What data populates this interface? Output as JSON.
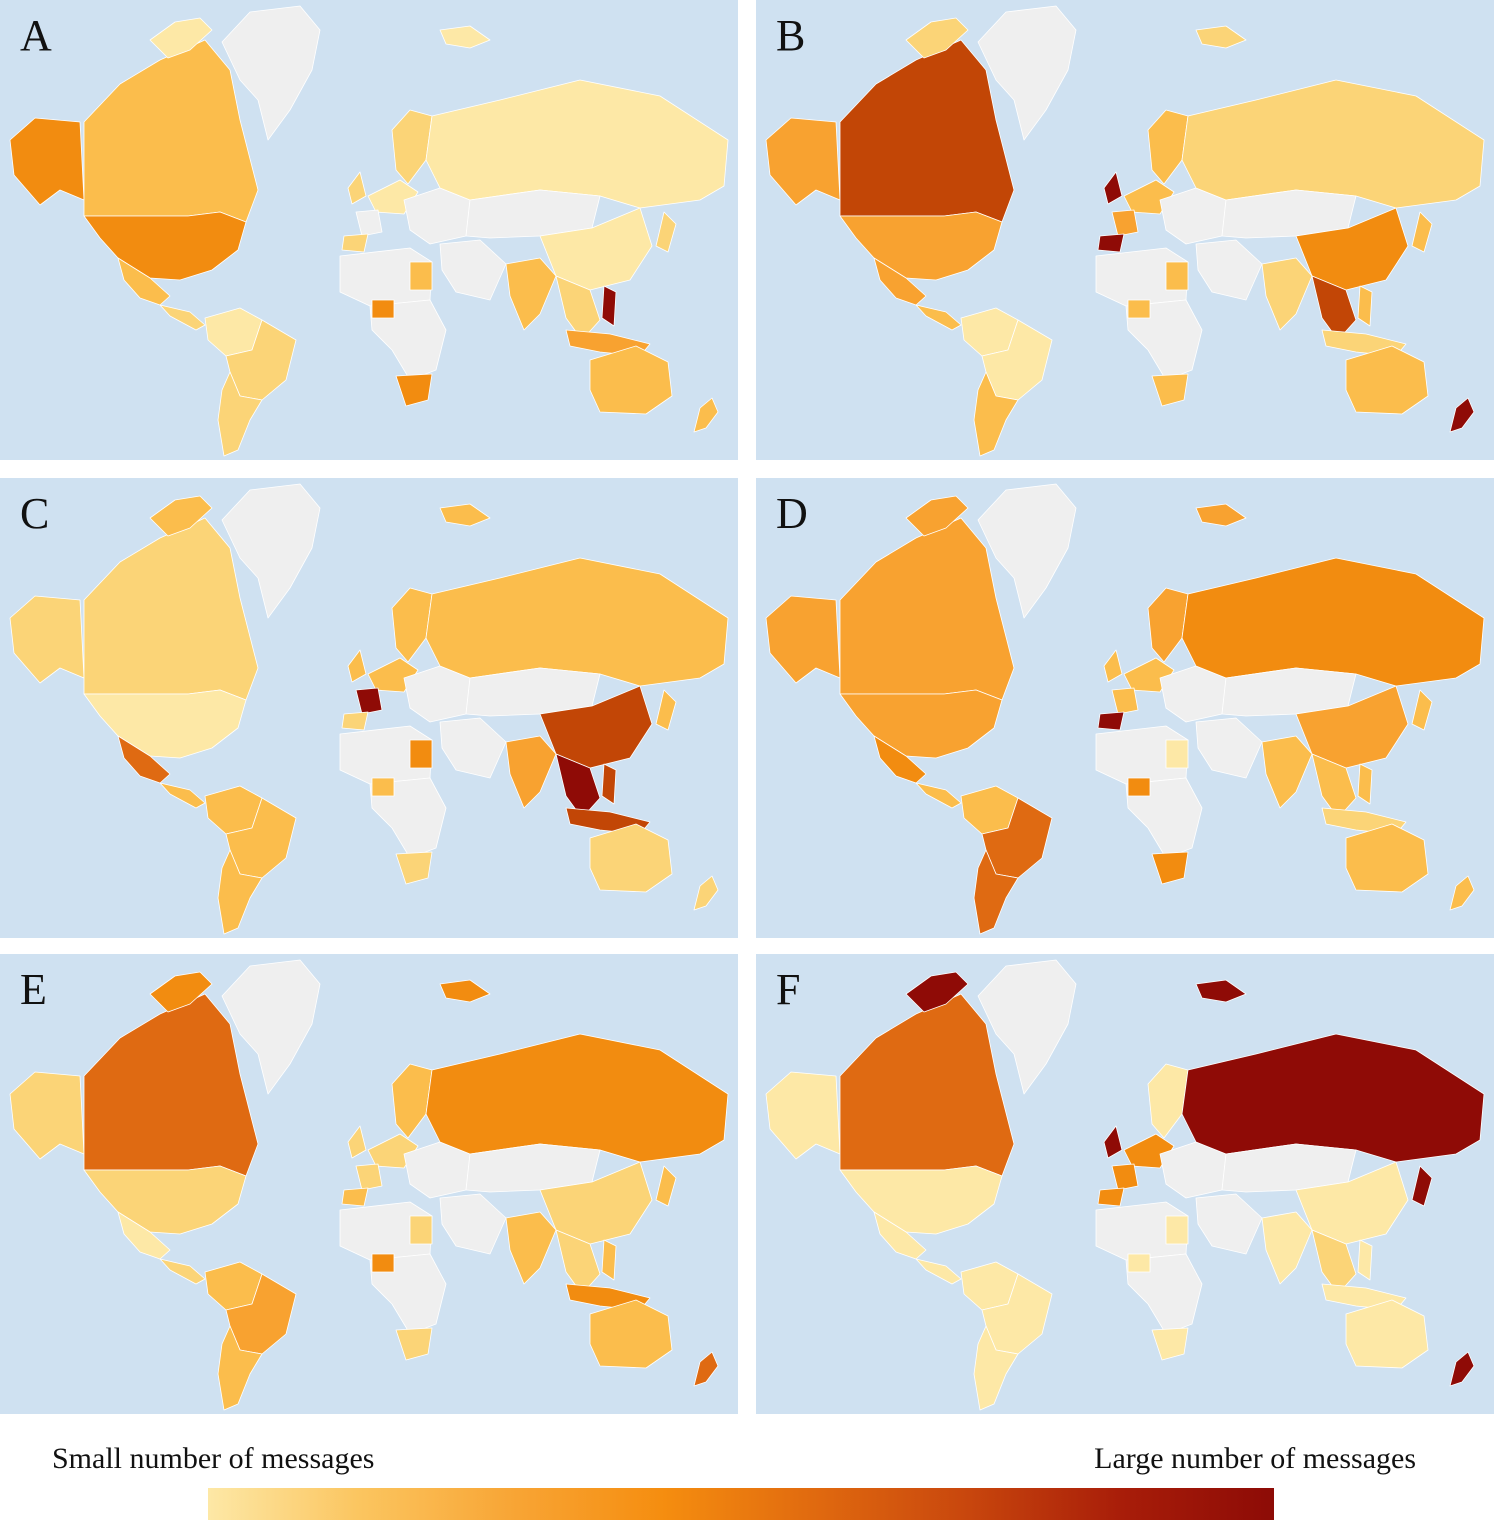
{
  "legend": {
    "min_label": "Small number of messages",
    "max_label": "Large number of messages",
    "gradient": [
      "#fde8a6",
      "#fbc55f",
      "#f8a535",
      "#f58d0f",
      "#e0690f",
      "#c8460d",
      "#a81d09",
      "#8d0b06"
    ]
  },
  "scale_colors": {
    "no_data": "#efefef",
    "ocean": "#cfe1f1",
    "level_1": "#fde8a6",
    "level_2": "#fbd477",
    "level_3": "#fbbd4c",
    "level_4": "#f8a230",
    "level_5": "#f28c10",
    "level_6": "#df6a12",
    "level_7": "#c24606",
    "level_8": "#8f0b06"
  },
  "panels": [
    {
      "label": "A",
      "levels": {
        "greenland": 0,
        "alaska": 5,
        "canada": 3,
        "usa": 5,
        "mexico": 3,
        "central-america": 2,
        "south-america-north": 1,
        "brazil": 2,
        "argentina-chile": 2,
        "western-europe": 1,
        "uk": 2,
        "spain": 2,
        "france": 0,
        "scandinavia": 2,
        "eastern-europe": 0,
        "russia": 1,
        "kazakhstan-mongolia": 0,
        "china": 1,
        "india": 3,
        "southeast-asia": 2,
        "indonesia": 4,
        "philippines": 8,
        "japan": 2,
        "middle-east": 0,
        "north-africa": 0,
        "egypt": 3,
        "central-africa": 0,
        "nigeria": 5,
        "south-africa": 5,
        "australia": 3,
        "new-zealand": 3,
        "arctic-islands": 1
      }
    },
    {
      "label": "B",
      "levels": {
        "greenland": 0,
        "alaska": 4,
        "canada": 7,
        "usa": 4,
        "mexico": 4,
        "central-america": 3,
        "south-america-north": 1,
        "brazil": 1,
        "argentina-chile": 3,
        "western-europe": 3,
        "uk": 8,
        "spain": 8,
        "france": 4,
        "scandinavia": 3,
        "eastern-europe": 0,
        "russia": 2,
        "kazakhstan-mongolia": 0,
        "china": 5,
        "india": 2,
        "southeast-asia": 7,
        "indonesia": 2,
        "philippines": 3,
        "japan": 3,
        "middle-east": 0,
        "north-africa": 0,
        "egypt": 3,
        "central-africa": 0,
        "nigeria": 3,
        "south-africa": 3,
        "australia": 3,
        "new-zealand": 8,
        "arctic-islands": 2
      }
    },
    {
      "label": "C",
      "levels": {
        "greenland": 0,
        "alaska": 2,
        "canada": 2,
        "usa": 1,
        "mexico": 6,
        "central-america": 3,
        "south-america-north": 3,
        "brazil": 3,
        "argentina-chile": 3,
        "western-europe": 3,
        "uk": 3,
        "spain": 2,
        "france": 8,
        "scandinavia": 3,
        "eastern-europe": 0,
        "russia": 3,
        "kazakhstan-mongolia": 0,
        "china": 7,
        "india": 4,
        "southeast-asia": 8,
        "indonesia": 7,
        "philippines": 7,
        "japan": 3,
        "middle-east": 0,
        "north-africa": 0,
        "egypt": 5,
        "central-africa": 0,
        "nigeria": 3,
        "south-africa": 2,
        "australia": 2,
        "new-zealand": 2,
        "arctic-islands": 3
      }
    },
    {
      "label": "D",
      "levels": {
        "greenland": 0,
        "alaska": 4,
        "canada": 4,
        "usa": 4,
        "mexico": 5,
        "central-america": 3,
        "south-america-north": 3,
        "brazil": 6,
        "argentina-chile": 6,
        "western-europe": 3,
        "uk": 3,
        "spain": 8,
        "france": 3,
        "scandinavia": 4,
        "eastern-europe": 0,
        "russia": 5,
        "kazakhstan-mongolia": 0,
        "china": 4,
        "india": 3,
        "southeast-asia": 3,
        "indonesia": 2,
        "philippines": 3,
        "japan": 3,
        "middle-east": 0,
        "north-africa": 0,
        "egypt": 1,
        "central-africa": 0,
        "nigeria": 5,
        "south-africa": 5,
        "australia": 3,
        "new-zealand": 3,
        "arctic-islands": 4
      }
    },
    {
      "label": "E",
      "levels": {
        "greenland": 0,
        "alaska": 2,
        "canada": 6,
        "usa": 2,
        "mexico": 1,
        "central-america": 2,
        "south-america-north": 3,
        "brazil": 4,
        "argentina-chile": 3,
        "western-europe": 2,
        "uk": 2,
        "spain": 3,
        "france": 2,
        "scandinavia": 3,
        "eastern-europe": 0,
        "russia": 5,
        "kazakhstan-mongolia": 0,
        "china": 2,
        "india": 3,
        "southeast-asia": 2,
        "indonesia": 5,
        "philippines": 3,
        "japan": 3,
        "middle-east": 0,
        "north-africa": 0,
        "egypt": 2,
        "central-africa": 0,
        "nigeria": 5,
        "south-africa": 2,
        "australia": 3,
        "new-zealand": 6,
        "arctic-islands": 5
      }
    },
    {
      "label": "F",
      "levels": {
        "greenland": 0,
        "alaska": 1,
        "canada": 6,
        "usa": 1,
        "mexico": 1,
        "central-america": 1,
        "south-america-north": 1,
        "brazil": 1,
        "argentina-chile": 1,
        "western-europe": 5,
        "uk": 8,
        "spain": 5,
        "france": 5,
        "scandinavia": 1,
        "eastern-europe": 0,
        "russia": 8,
        "kazakhstan-mongolia": 0,
        "china": 1,
        "india": 1,
        "southeast-asia": 2,
        "indonesia": 1,
        "philippines": 1,
        "japan": 8,
        "middle-east": 0,
        "north-africa": 0,
        "egypt": 1,
        "central-africa": 0,
        "nigeria": 1,
        "south-africa": 1,
        "australia": 1,
        "new-zealand": 8,
        "arctic-islands": 8
      }
    }
  ]
}
